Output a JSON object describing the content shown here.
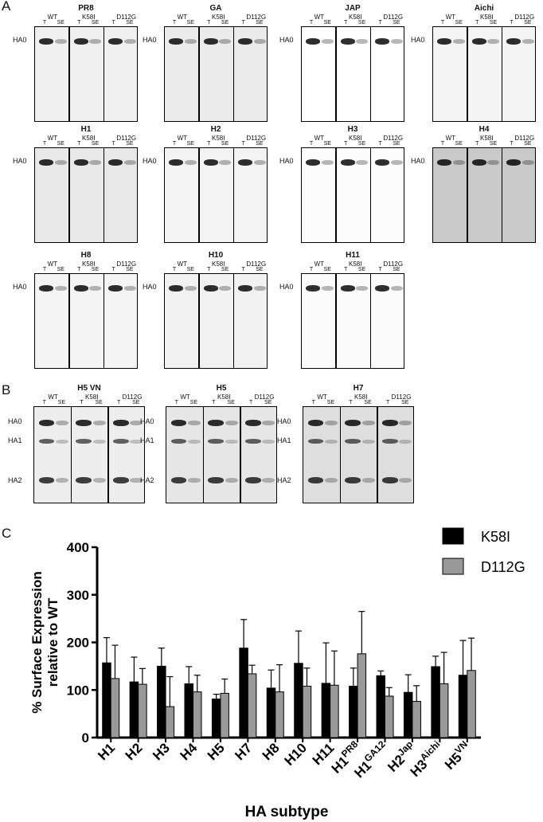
{
  "panels": {
    "a": "A",
    "b": "B",
    "c": "C"
  },
  "lane_groups": [
    "WT",
    "K58I",
    "D112G"
  ],
  "lane_types": [
    "T",
    "SE"
  ],
  "band_labels": {
    "ha0": "HA0",
    "ha1": "HA1",
    "ha2": "HA2"
  },
  "blots_a": [
    {
      "title": "PR8",
      "bg": "#f0f0f0"
    },
    {
      "title": "GA",
      "bg": "#ebebeb"
    },
    {
      "title": "JAP",
      "bg": "#ffffff"
    },
    {
      "title": "Aichi",
      "bg": "#f4f4f4"
    },
    {
      "title": "H1",
      "bg": "#e9e9e9"
    },
    {
      "title": "H2",
      "bg": "#f3f3f3"
    },
    {
      "title": "H3",
      "bg": "#fcfcfc"
    },
    {
      "title": "H4",
      "bg": "#c9c9c9"
    },
    {
      "title": "H8",
      "bg": "#f4f4f4"
    },
    {
      "title": "H10",
      "bg": "#f1f1f1"
    },
    {
      "title": "H11",
      "bg": "#fbfbfb"
    }
  ],
  "blots_b": [
    {
      "title": "H5 VN",
      "bg": "#ededed"
    },
    {
      "title": "H5",
      "bg": "#e6e6e6"
    },
    {
      "title": "H7",
      "bg": "#dedede"
    }
  ],
  "chart_data": {
    "type": "bar",
    "ylabel": "% Surface Expression relative to WT",
    "xlabel": "HA subtype",
    "ylim": [
      0,
      400
    ],
    "yticks": [
      0,
      100,
      200,
      300,
      400
    ],
    "grid": false,
    "legend_position": "top-right",
    "categories": [
      {
        "base": "H1",
        "sup": ""
      },
      {
        "base": "H2",
        "sup": ""
      },
      {
        "base": "H3",
        "sup": ""
      },
      {
        "base": "H4",
        "sup": ""
      },
      {
        "base": "H5",
        "sup": ""
      },
      {
        "base": "H7",
        "sup": ""
      },
      {
        "base": "H8",
        "sup": ""
      },
      {
        "base": "H10",
        "sup": ""
      },
      {
        "base": "H11",
        "sup": ""
      },
      {
        "base": "H1",
        "sup": "PR8"
      },
      {
        "base": "H1",
        "sup": "GA12"
      },
      {
        "base": "H2",
        "sup": "Jap"
      },
      {
        "base": "H3",
        "sup": "Aichi"
      },
      {
        "base": "H5",
        "sup": "VN"
      }
    ],
    "series": [
      {
        "name": "K58I",
        "color": "#000000",
        "values": [
          157,
          117,
          150,
          113,
          81,
          188,
          104,
          156,
          114,
          108,
          130,
          95,
          149,
          131
        ],
        "errors": [
          53,
          52,
          38,
          36,
          10,
          60,
          38,
          68,
          85,
          38,
          10,
          37,
          22,
          73
        ]
      },
      {
        "name": "D112G",
        "color": "#999999",
        "values": [
          124,
          112,
          65,
          96,
          93,
          134,
          96,
          108,
          110,
          176,
          87,
          76,
          113,
          141
        ],
        "errors": [
          70,
          33,
          63,
          35,
          30,
          18,
          57,
          38,
          72,
          89,
          18,
          33,
          66,
          68
        ]
      }
    ]
  }
}
